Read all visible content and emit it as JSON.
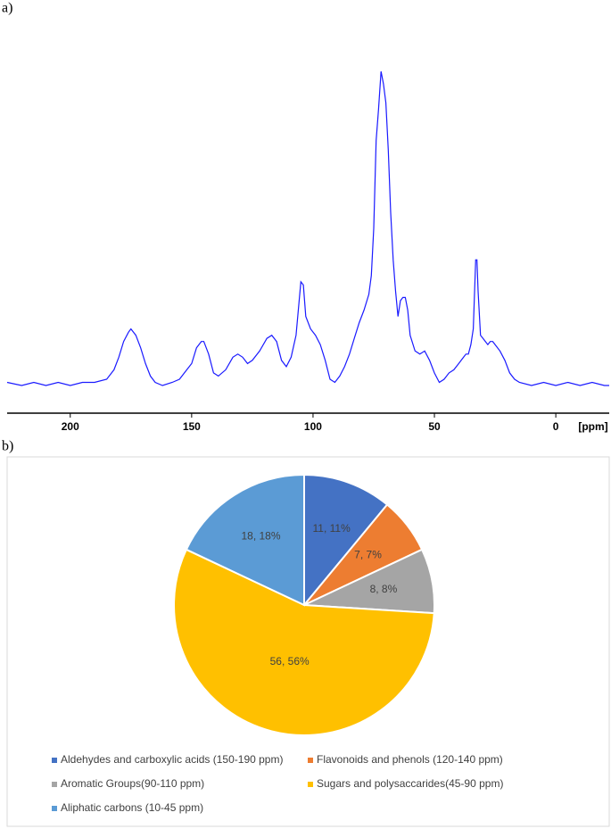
{
  "chart_data": [
    {
      "type": "line",
      "label": "a)",
      "x_label": "[ppm]",
      "xlim": [
        226,
        -22
      ],
      "ylim": [
        0,
        100
      ],
      "xticks": [
        200,
        150,
        100,
        50,
        0
      ],
      "x": [
        226,
        220,
        215,
        210,
        205,
        200,
        195,
        190,
        185,
        182,
        180,
        178,
        176,
        175,
        173,
        171,
        169,
        167,
        165,
        162,
        158,
        155,
        152,
        150,
        148,
        146,
        145,
        143,
        141,
        139,
        136,
        133,
        131,
        129,
        127,
        125,
        122,
        119,
        117,
        115,
        113,
        111,
        109,
        107,
        105,
        104,
        103,
        101,
        99,
        97,
        95,
        93,
        91,
        89,
        87,
        85,
        83,
        81,
        79,
        77,
        76,
        75,
        74,
        73,
        72,
        71,
        70,
        69,
        68,
        67,
        66,
        65,
        64,
        63,
        62,
        61,
        60,
        58,
        56,
        54,
        52,
        50,
        48,
        46,
        44,
        42,
        40,
        38,
        37,
        36,
        35,
        34,
        33,
        32.5,
        32,
        31,
        30,
        29,
        28,
        27,
        26,
        25,
        23,
        21,
        19,
        17,
        15,
        10,
        5,
        0,
        -5,
        -10,
        -15,
        -20,
        -22
      ],
      "series": [
        {
          "color": "#1a1aff",
          "values": [
            1,
            0,
            1,
            0,
            1,
            0,
            1,
            1,
            2,
            5,
            9,
            14,
            17,
            18,
            16,
            12,
            7,
            3,
            1,
            0,
            1,
            2,
            5,
            7,
            12,
            14,
            14,
            10,
            4,
            3,
            5,
            9,
            10,
            9,
            7,
            8,
            11,
            15,
            16,
            14,
            8,
            6,
            9,
            16,
            33,
            32,
            22,
            18,
            16,
            13,
            8,
            2,
            1,
            3,
            6,
            10,
            15,
            20,
            24,
            29,
            35,
            50,
            78,
            88,
            100,
            96,
            90,
            75,
            55,
            40,
            30,
            22,
            27,
            28,
            28,
            24,
            16,
            11,
            10,
            11,
            8,
            4,
            1,
            2,
            4,
            5,
            7,
            9,
            10,
            10,
            13,
            18,
            40,
            40,
            30,
            16,
            15,
            14,
            13,
            14,
            14,
            13,
            11,
            8,
            4,
            2,
            1,
            0,
            1,
            0,
            1,
            0,
            1,
            0,
            0
          ]
        }
      ]
    },
    {
      "type": "pie",
      "label": "b)",
      "categories": [
        "Aldehydes and carboxylic acids (150-190 ppm)",
        "Flavonoids and phenols (120-140 ppm)",
        "Aromatic Groups(90-110 ppm)",
        "Sugars and polysaccarides(45-90 ppm)",
        "Aliphatic carbons (10-45 ppm)"
      ],
      "values": [
        11,
        7,
        8,
        56,
        18
      ],
      "value_labels": [
        "11, 11%",
        "7, 7%",
        "8, 8%",
        "56, 56%",
        "18, 18%"
      ],
      "colors": [
        "#4472c4",
        "#ed7d31",
        "#a5a5a5",
        "#ffc000",
        "#5b9bd5"
      ],
      "legend": "bottom"
    }
  ]
}
